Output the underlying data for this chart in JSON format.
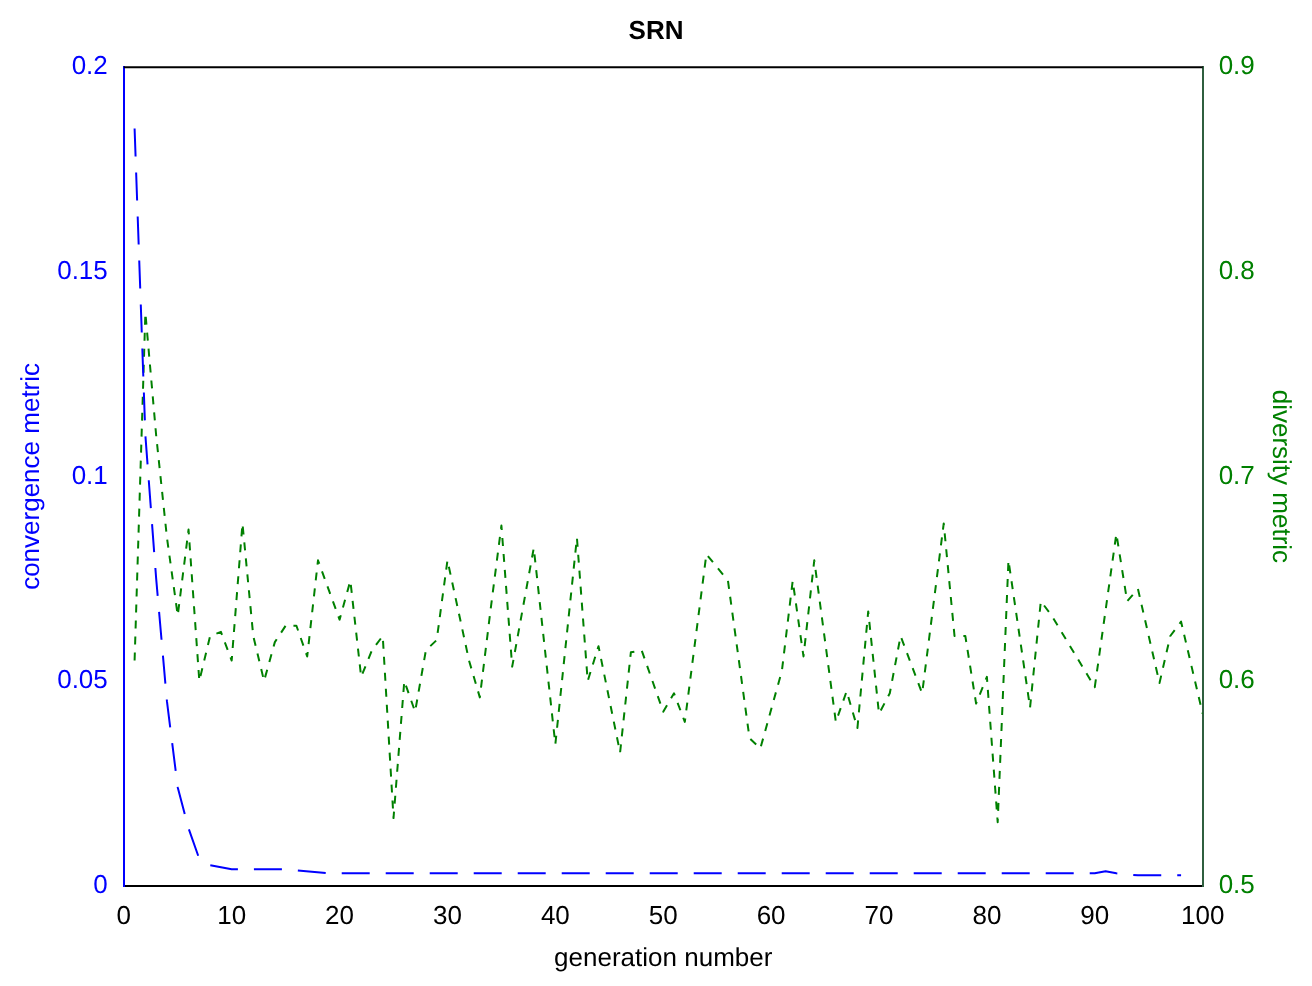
{
  "chart_data": {
    "type": "line",
    "title": "SRN",
    "xlabel": "generation number",
    "ylabel": "convergence metric",
    "y2label": "diversity metric",
    "xlim": [
      0,
      100
    ],
    "xticks": [
      0,
      10,
      20,
      30,
      40,
      50,
      60,
      70,
      80,
      90,
      100
    ],
    "ylim": [
      0,
      0.2
    ],
    "yticks": [
      0,
      0.05,
      0.1,
      0.15,
      0.2
    ],
    "y2lim": [
      0.5,
      0.9
    ],
    "y2ticks": [
      0.5,
      0.6,
      0.7,
      0.8,
      0.9
    ],
    "grid": false,
    "legend": false,
    "marker": "none",
    "series": [
      {
        "color": "#0000ff",
        "line_style": "dashed",
        "x": [
          1,
          2,
          3,
          4,
          5,
          6,
          7,
          8,
          10,
          15,
          19,
          90,
          91,
          92,
          94,
          98
        ],
        "values": [
          0.185,
          0.11,
          0.075,
          0.045,
          0.024,
          0.014,
          0.0065,
          0.005,
          0.004,
          0.004,
          0.003,
          0.003,
          0.0035,
          0.003,
          0.0025,
          0.0025
        ]
      },
      {
        "color": "#008000",
        "line_style": "dotted",
        "axis": "y2",
        "x": [
          1,
          2,
          3,
          4,
          5,
          6,
          7,
          8,
          9,
          10,
          11,
          12,
          13,
          14,
          15,
          16,
          17,
          18,
          20,
          21,
          22,
          23,
          24,
          25,
          26,
          27,
          28,
          29,
          30,
          32,
          33,
          34,
          35,
          36,
          38,
          40,
          42,
          43,
          44,
          46,
          47,
          48,
          50,
          51,
          52,
          54,
          56,
          58,
          59,
          61,
          62,
          63,
          64,
          66,
          67,
          68,
          69,
          70,
          71,
          72,
          74,
          76,
          77,
          78,
          79,
          80,
          81,
          82,
          84,
          85,
          86,
          90,
          92,
          93,
          94,
          96,
          97,
          98,
          100
        ],
        "values": [
          0.61,
          0.78,
          0.72,
          0.67,
          0.632,
          0.674,
          0.6,
          0.622,
          0.624,
          0.61,
          0.677,
          0.622,
          0.6,
          0.619,
          0.627,
          0.627,
          0.612,
          0.659,
          0.63,
          0.649,
          0.602,
          0.615,
          0.622,
          0.533,
          0.6,
          0.585,
          0.615,
          0.62,
          0.659,
          0.61,
          0.592,
          0.635,
          0.676,
          0.607,
          0.665,
          0.569,
          0.67,
          0.6,
          0.617,
          0.565,
          0.614,
          0.615,
          0.585,
          0.594,
          0.58,
          0.662,
          0.649,
          0.572,
          0.567,
          0.605,
          0.649,
          0.612,
          0.659,
          0.58,
          0.595,
          0.577,
          0.634,
          0.584,
          0.594,
          0.622,
          0.594,
          0.677,
          0.622,
          0.622,
          0.589,
          0.602,
          0.531,
          0.659,
          0.587,
          0.639,
          0.632,
          0.597,
          0.672,
          0.639,
          0.645,
          0.599,
          0.622,
          0.629,
          0.584
        ]
      }
    ]
  }
}
